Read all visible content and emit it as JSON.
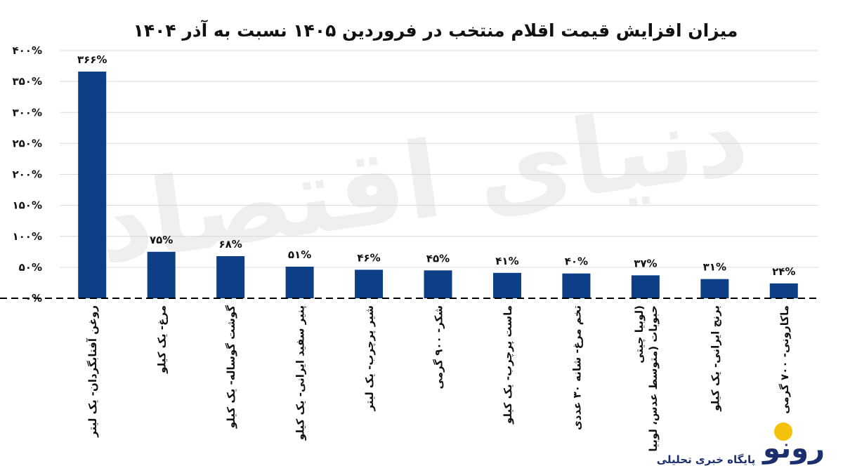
{
  "chart_data": {
    "type": "bar",
    "title": "میزان افزایش قیمت اقلام منتخب در فروردین ۱۴۰۵ نسبت به آذر ۱۴۰۴",
    "xlabel": "",
    "ylabel": "",
    "ylim": [
      0,
      400
    ],
    "yticks": [
      0,
      50,
      100,
      150,
      200,
      250,
      300,
      350,
      400
    ],
    "ytick_labels": [
      "۰%",
      "۵۰%",
      "۱۰۰%",
      "۱۵۰%",
      "۲۰۰%",
      "۲۵۰%",
      "۳۰۰%",
      "۳۵۰%",
      "۴۰۰%"
    ],
    "grid": true,
    "legend": "none",
    "categories": [
      [
        "روغن آفتابگردان- یک لیتر"
      ],
      [
        "مرغ- یک کیلو"
      ],
      [
        "گوشت گوساله- یک کیلو"
      ],
      [
        "پنیر سفید ایرانی- یک کیلو"
      ],
      [
        "شیر پرچرب- یک لیتر"
      ],
      [
        "شکر- ۹۰۰ گرمی"
      ],
      [
        "ماست پرچرب- یک کیلو"
      ],
      [
        "تخم مرغ- شانه ۳۰ عددی"
      ],
      [
        "حبوبات (متوسط عدس، لوبیا",
        "لوبیا چیتی)"
      ],
      [
        "برنج ایرانی- یک کیلو"
      ],
      [
        "ماکارونی- ۷۰۰ گرمی"
      ]
    ],
    "values": [
      366,
      75,
      68,
      51,
      46,
      45,
      41,
      40,
      37,
      31,
      24
    ],
    "data_labels": [
      "۳۶۶%",
      "۷۵%",
      "۶۸%",
      "۵۱%",
      "۴۶%",
      "۴۵%",
      "۴۱%",
      "۴۰%",
      "۳۷%",
      "۳۱%",
      "۲۴%"
    ],
    "colors": {
      "bar": "#0e3e86",
      "grid": "#d9d9d9",
      "baseline": "#000000"
    }
  },
  "watermark": "دنیای اقتصاد",
  "branding": {
    "logo_text": "رونو",
    "tagline": "پایگاه خبری تحلیلی"
  }
}
